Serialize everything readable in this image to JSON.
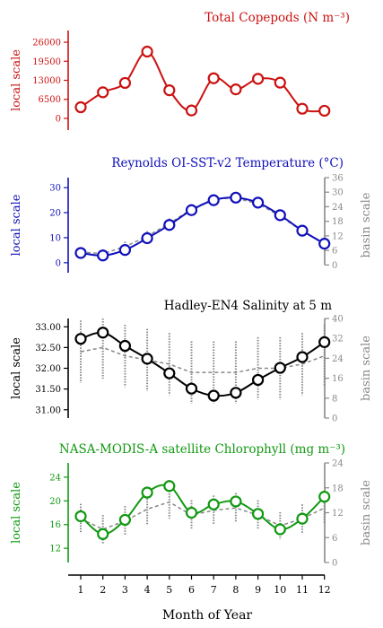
{
  "chart_data": [
    {
      "type": "line",
      "title": "Total Copepods (N m⁻³)",
      "ylabel": "local scale",
      "y2label": "",
      "color": "#cc1111",
      "ylim": [
        -4000,
        30000
      ],
      "yticks": [
        0,
        6500,
        13000,
        19500,
        26000
      ],
      "ytick_labels": [
        "0",
        "6500",
        "13000",
        "19500",
        "26000"
      ],
      "x": [
        1,
        2,
        3,
        4,
        5,
        6,
        7,
        8,
        9,
        10,
        11,
        12
      ],
      "values": [
        3800,
        8900,
        12100,
        22800,
        9600,
        2700,
        13700,
        9900,
        13500,
        12200,
        3300,
        2600
      ]
    },
    {
      "type": "line",
      "title": "Reynolds OI-SST-v2 Temperature (°C)",
      "ylabel": "local scale",
      "y2label": "basin scale",
      "color": "#1111bb",
      "ylim": [
        -4,
        34
      ],
      "yticks": [
        0,
        10,
        20,
        30
      ],
      "ytick_labels": [
        "0",
        "10",
        "20",
        "30"
      ],
      "y2lim": [
        -3.2,
        36
      ],
      "y2ticks": [
        0,
        6,
        12,
        18,
        24,
        30,
        36
      ],
      "y2tick_labels": [
        "0",
        "6",
        "12",
        "18",
        "24",
        "30",
        "36"
      ],
      "x": [
        1,
        2,
        3,
        4,
        5,
        6,
        7,
        8,
        9,
        10,
        11,
        12
      ],
      "values": [
        3.9,
        2.9,
        5.1,
        9.8,
        15.1,
        21.0,
        25.0,
        26.0,
        24.0,
        19.0,
        12.8,
        7.6
      ],
      "basin_values": [
        4.3,
        3.6,
        6.4,
        10.6,
        15.7,
        21.4,
        25.5,
        25.8,
        23.6,
        18.6,
        12.6,
        7.9
      ],
      "basin_spread": [
        3.5,
        3.5,
        4.0,
        4.0,
        4.0,
        4.0,
        3.5,
        3.0,
        3.0,
        3.5,
        3.5,
        3.5
      ]
    },
    {
      "type": "line",
      "title": "Hadley-EN4 Salinity at 5 m",
      "ylabel": "local scale",
      "y2label": "basin scale",
      "color": "#000000",
      "ylim": [
        30.8,
        33.2
      ],
      "yticks": [
        31.0,
        31.5,
        32.0,
        32.5,
        33.0
      ],
      "ytick_labels": [
        "31.00",
        "31.50",
        "32.00",
        "32.50",
        "33.00"
      ],
      "y2lim": [
        0,
        40
      ],
      "y2ticks": [
        0,
        8,
        16,
        24,
        32,
        40
      ],
      "y2tick_labels": [
        "0",
        "8",
        "16",
        "24",
        "32",
        "40"
      ],
      "x": [
        1,
        2,
        3,
        4,
        5,
        6,
        7,
        8,
        9,
        10,
        11,
        12
      ],
      "values": [
        32.71,
        32.86,
        32.54,
        32.23,
        31.88,
        31.51,
        31.34,
        31.41,
        31.72,
        32.01,
        32.27,
        32.63
      ],
      "basin_values": [
        32.4,
        32.5,
        32.3,
        32.2,
        32.1,
        31.9,
        31.9,
        31.9,
        32.0,
        32.0,
        32.1,
        32.3
      ],
      "basin_spread": [
        1.5,
        1.5,
        1.5,
        1.5,
        1.5,
        1.5,
        1.5,
        1.5,
        1.5,
        1.5,
        1.5,
        1.5
      ]
    },
    {
      "type": "line",
      "title": "NASA-MODIS-A satellite Chlorophyll (mg m⁻³)",
      "ylabel": "local scale",
      "y2label": "basin scale",
      "color": "#119911",
      "ylim": [
        9.6,
        26.4
      ],
      "yticks": [
        12,
        16,
        20,
        24
      ],
      "ytick_labels": [
        "12",
        "16",
        "20",
        "24"
      ],
      "y2lim": [
        0,
        24
      ],
      "y2ticks": [
        0,
        6,
        12,
        18,
        24
      ],
      "y2tick_labels": [
        "0",
        "6",
        "12",
        "18",
        "24"
      ],
      "x": [
        1,
        2,
        3,
        4,
        5,
        6,
        7,
        8,
        9,
        10,
        11,
        12
      ],
      "values": [
        17.4,
        14.4,
        16.8,
        21.4,
        22.5,
        18.0,
        19.4,
        19.9,
        17.8,
        15.2,
        17.0,
        20.7
      ],
      "basin_values": [
        17.0,
        15.2,
        16.6,
        18.6,
        19.8,
        17.6,
        18.4,
        18.8,
        17.6,
        15.8,
        17.0,
        18.8
      ],
      "basin_spread": [
        5.0,
        4.8,
        5.0,
        5.4,
        5.6,
        5.0,
        5.0,
        5.0,
        5.0,
        4.6,
        4.8,
        5.4
      ]
    }
  ],
  "xaxis": {
    "label": "Month of Year",
    "ticks": [
      1,
      2,
      3,
      4,
      5,
      6,
      7,
      8,
      9,
      10,
      11,
      12
    ],
    "tick_labels": [
      "1",
      "2",
      "3",
      "4",
      "5",
      "6",
      "7",
      "8",
      "9",
      "10",
      "11",
      "12"
    ]
  },
  "colors": {
    "basin": "#888888"
  }
}
